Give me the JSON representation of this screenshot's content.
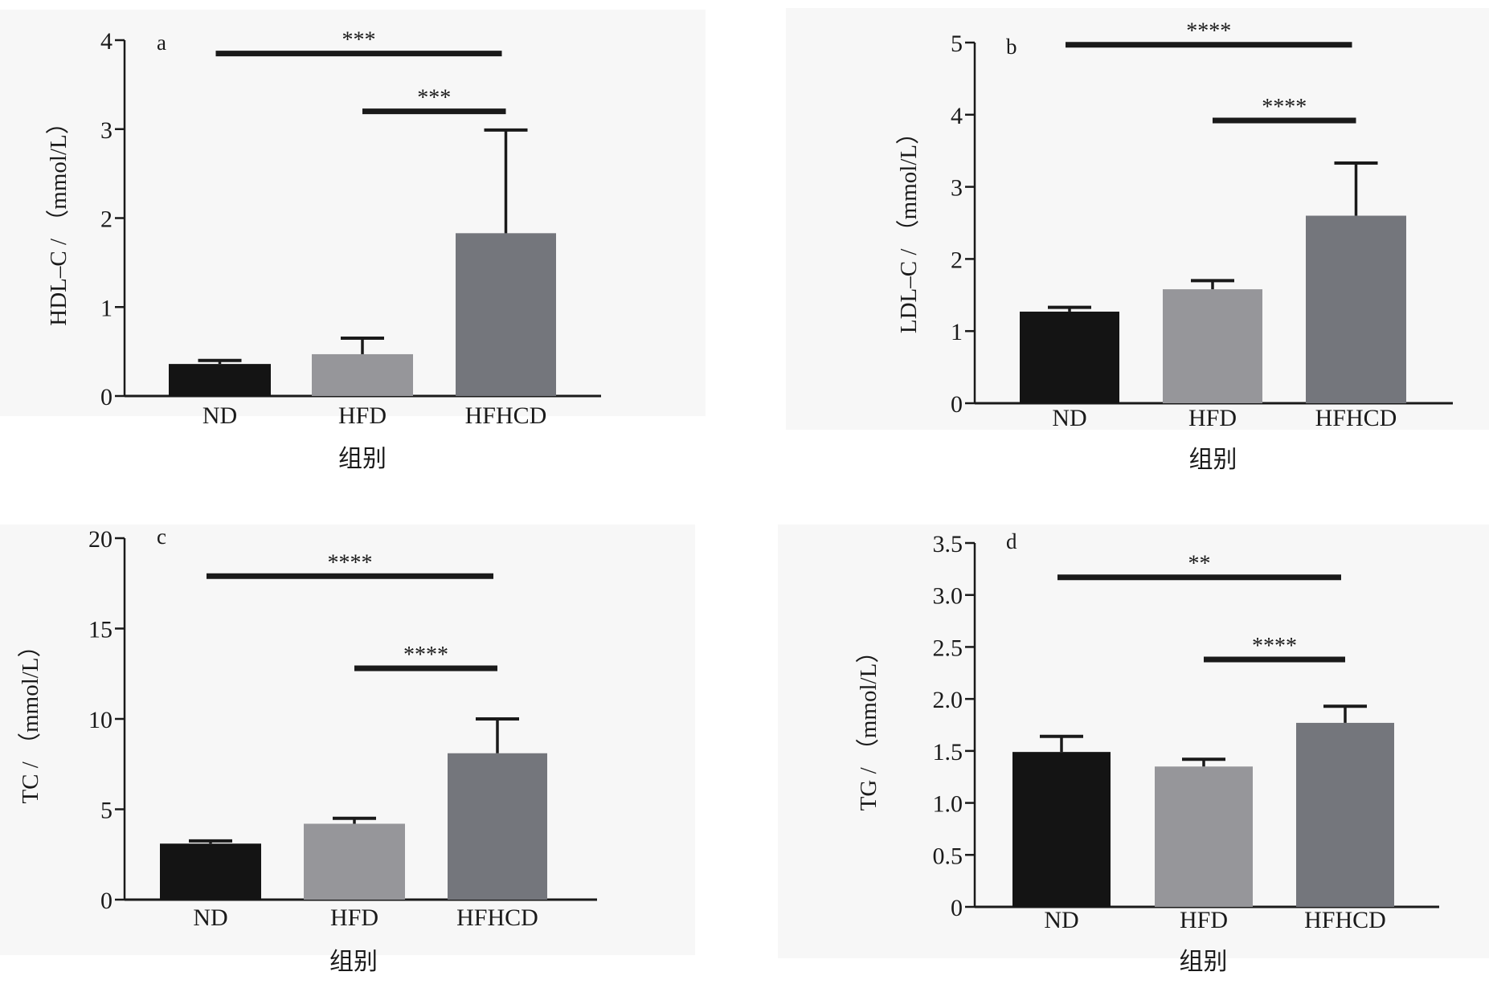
{
  "colors": {
    "panel_bg": "#f7f7f7",
    "ND": "#141414",
    "HFD": "#96969a",
    "HFHCD": "#74767c",
    "axis": "#1a1a1a",
    "text": "#1a1a1a"
  },
  "chart_data": [
    {
      "panel": "a",
      "type": "bar",
      "categories": [
        "ND",
        "HFD",
        "HFHCD"
      ],
      "values": [
        0.36,
        0.47,
        1.83
      ],
      "errors": [
        0.04,
        0.18,
        1.16
      ],
      "xlabel": "组别",
      "ylabel": "HDL–C / （mmol/L）",
      "ylim": [
        0,
        4
      ],
      "yticks": [
        "0",
        "1",
        "2",
        "3",
        "4"
      ],
      "significance": [
        {
          "from": "ND",
          "to": "HFHCD",
          "y": 3.85,
          "label": "***"
        },
        {
          "from": "HFD",
          "to": "HFHCD",
          "y": 3.2,
          "label": "***"
        }
      ]
    },
    {
      "panel": "b",
      "type": "bar",
      "categories": [
        "ND",
        "HFD",
        "HFHCD"
      ],
      "values": [
        1.27,
        1.58,
        2.6
      ],
      "errors": [
        0.06,
        0.12,
        0.73
      ],
      "xlabel": "组别",
      "ylabel": "LDL–C / （mmol/L）",
      "ylim": [
        0,
        5
      ],
      "yticks": [
        "0",
        "1",
        "2",
        "3",
        "4",
        "5"
      ],
      "significance": [
        {
          "from": "ND",
          "to": "HFHCD",
          "y": 4.97,
          "label": "****"
        },
        {
          "from": "HFD",
          "to": "HFHCD",
          "y": 3.92,
          "label": "****"
        }
      ]
    },
    {
      "panel": "c",
      "type": "bar",
      "categories": [
        "ND",
        "HFD",
        "HFHCD"
      ],
      "values": [
        3.1,
        4.2,
        8.1
      ],
      "errors": [
        0.15,
        0.3,
        1.9
      ],
      "xlabel": "组别",
      "ylabel": "TC / （mmol/L）",
      "ylim": [
        0,
        20
      ],
      "yticks": [
        "0",
        "5",
        "10",
        "15",
        "20"
      ],
      "significance": [
        {
          "from": "ND",
          "to": "HFHCD",
          "y": 17.9,
          "label": "****"
        },
        {
          "from": "HFD",
          "to": "HFHCD",
          "y": 12.8,
          "label": "****"
        }
      ]
    },
    {
      "panel": "d",
      "type": "bar",
      "categories": [
        "ND",
        "HFD",
        "HFHCD"
      ],
      "values": [
        1.49,
        1.35,
        1.77
      ],
      "errors": [
        0.15,
        0.07,
        0.16
      ],
      "xlabel": "组别",
      "ylabel": "TG / （mmol/L）",
      "ylim": [
        0,
        3.5
      ],
      "yticks": [
        "0",
        "0.5",
        "1.0",
        "1.5",
        "2.0",
        "2.5",
        "3.0",
        "3.5"
      ],
      "significance": [
        {
          "from": "ND",
          "to": "HFHCD",
          "y": 3.17,
          "label": "**"
        },
        {
          "from": "HFD",
          "to": "HFHCD",
          "y": 2.38,
          "label": "****"
        }
      ]
    }
  ]
}
